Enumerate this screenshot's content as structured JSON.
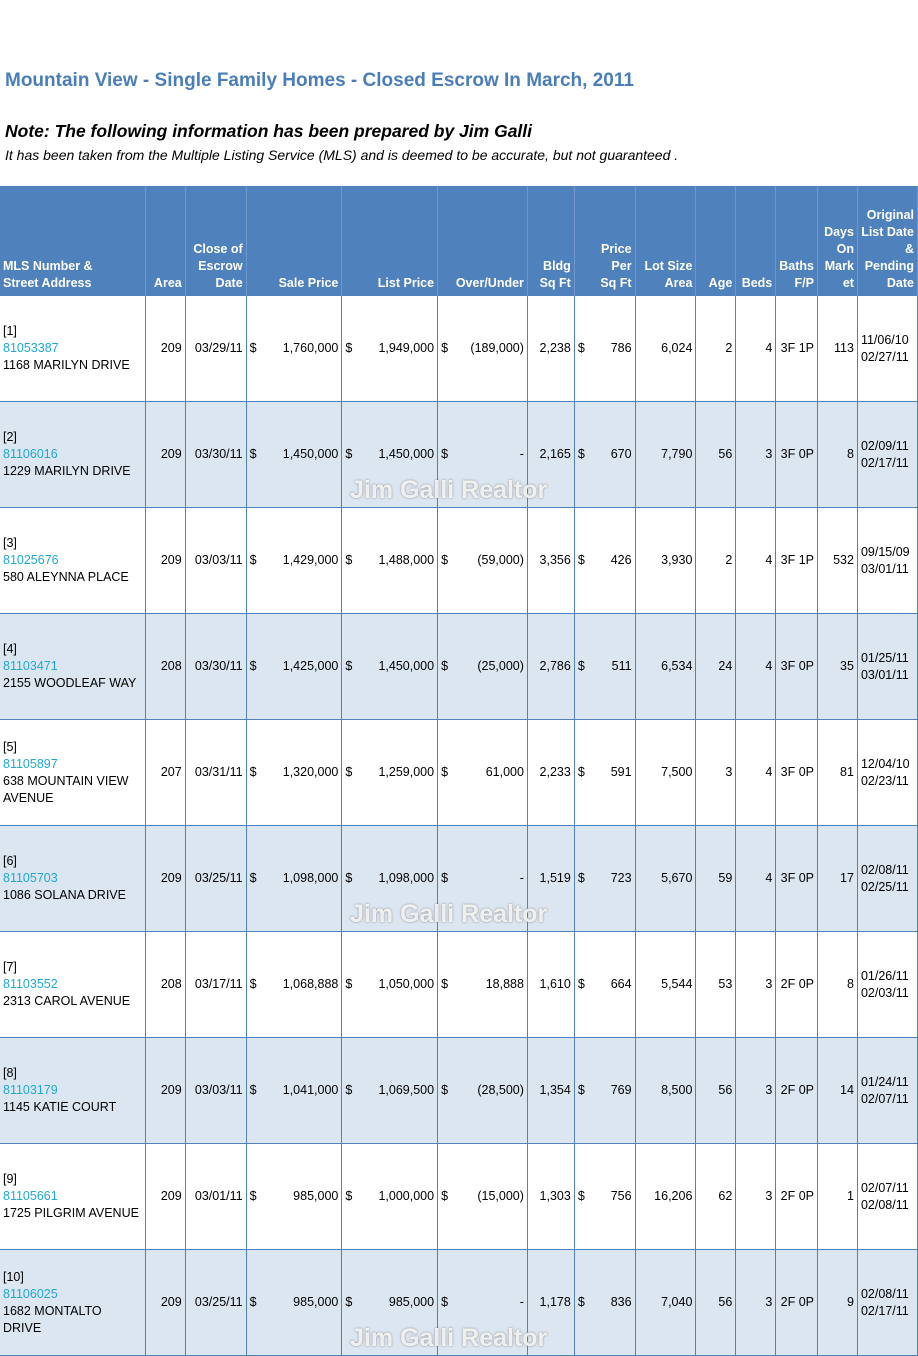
{
  "title": "Mountain View - Single Family Homes - Closed Escrow In March, 2011",
  "note": "Note:  The following information has been prepared by Jim Galli",
  "disclaimer": "It has been taken from the Multiple Listing Service (MLS) and is deemed to be accurate, but not guaranteed .",
  "watermark": "Jim Galli Realtor",
  "colors": {
    "title": "#4a7ebb",
    "header_bg": "#4f81bd",
    "row_alt": "#dce6f1",
    "mls_link": "#1fa9d6"
  },
  "currency_symbol": "$",
  "headers": {
    "mls": [
      "MLS Number &",
      "Street Address"
    ],
    "area": [
      "Area"
    ],
    "close": [
      "Close of",
      "Escrow",
      "Date"
    ],
    "sale": [
      "Sale Price"
    ],
    "list": [
      "List Price"
    ],
    "over": [
      "Over/Under"
    ],
    "bldg": [
      "Bldg",
      "Sq Ft"
    ],
    "ppsf": [
      "Price",
      "Per",
      "Sq Ft"
    ],
    "lot": [
      "Lot Size",
      "Area"
    ],
    "age": [
      "Age"
    ],
    "beds": [
      "Beds"
    ],
    "baths": [
      "Baths",
      "F/P"
    ],
    "dom": [
      "Days",
      "On",
      "Mark",
      "et"
    ],
    "orig": [
      "Original",
      "List Date",
      "&",
      "Pending",
      "Date"
    ]
  },
  "rows": [
    {
      "idx": "[1]",
      "mls": "81053387",
      "address": "1168 MARILYN DRIVE",
      "area": "209",
      "close": "03/29/11",
      "sale": "1,760,000",
      "list": "1,949,000",
      "over": "(189,000)",
      "bldg": "2,238",
      "ppsf": "786",
      "lot": "6,024",
      "age": "2",
      "beds": "4",
      "baths": "3F 1P",
      "dom": "113",
      "list_date": "11/06/10",
      "pending_date": "02/27/11"
    },
    {
      "idx": "[2]",
      "mls": "81106016",
      "address": "1229 MARILYN DRIVE",
      "area": "209",
      "close": "03/30/11",
      "sale": "1,450,000",
      "list": "1,450,000",
      "over": "-",
      "bldg": "2,165",
      "ppsf": "670",
      "lot": "7,790",
      "age": "56",
      "beds": "3",
      "baths": "3F 0P",
      "dom": "8",
      "list_date": "02/09/11",
      "pending_date": "02/17/11"
    },
    {
      "idx": "[3]",
      "mls": "81025676",
      "address": "580 ALEYNNA PLACE",
      "area": "209",
      "close": "03/03/11",
      "sale": "1,429,000",
      "list": "1,488,000",
      "over": "(59,000)",
      "bldg": "3,356",
      "ppsf": "426",
      "lot": "3,930",
      "age": "2",
      "beds": "4",
      "baths": "3F 1P",
      "dom": "532",
      "list_date": "09/15/09",
      "pending_date": "03/01/11"
    },
    {
      "idx": "[4]",
      "mls": "81103471",
      "address": "2155 WOODLEAF WAY",
      "area": "208",
      "close": "03/30/11",
      "sale": "1,425,000",
      "list": "1,450,000",
      "over": "(25,000)",
      "bldg": "2,786",
      "ppsf": "511",
      "lot": "6,534",
      "age": "24",
      "beds": "4",
      "baths": "3F 0P",
      "dom": "35",
      "list_date": "01/25/11",
      "pending_date": "03/01/11"
    },
    {
      "idx": "[5]",
      "mls": "81105897",
      "address": "638 MOUNTAIN VIEW AVENUE",
      "area": "207",
      "close": "03/31/11",
      "sale": "1,320,000",
      "list": "1,259,000",
      "over": "61,000",
      "bldg": "2,233",
      "ppsf": "591",
      "lot": "7,500",
      "age": "3",
      "beds": "4",
      "baths": "3F 0P",
      "dom": "81",
      "list_date": "12/04/10",
      "pending_date": "02/23/11"
    },
    {
      "idx": "[6]",
      "mls": "81105703",
      "address": "1086 SOLANA DRIVE",
      "area": "209",
      "close": "03/25/11",
      "sale": "1,098,000",
      "list": "1,098,000",
      "over": "-",
      "bldg": "1,519",
      "ppsf": "723",
      "lot": "5,670",
      "age": "59",
      "beds": "4",
      "baths": "3F 0P",
      "dom": "17",
      "list_date": "02/08/11",
      "pending_date": "02/25/11"
    },
    {
      "idx": "[7]",
      "mls": "81103552",
      "address": "2313 CAROL AVENUE",
      "area": "208",
      "close": "03/17/11",
      "sale": "1,068,888",
      "list": "1,050,000",
      "over": "18,888",
      "bldg": "1,610",
      "ppsf": "664",
      "lot": "5,544",
      "age": "53",
      "beds": "3",
      "baths": "2F 0P",
      "dom": "8",
      "list_date": "01/26/11",
      "pending_date": "02/03/11"
    },
    {
      "idx": "[8]",
      "mls": "81103179",
      "address": "1145 KATIE COURT",
      "area": "209",
      "close": "03/03/11",
      "sale": "1,041,000",
      "list": "1,069,500",
      "over": "(28,500)",
      "bldg": "1,354",
      "ppsf": "769",
      "lot": "8,500",
      "age": "56",
      "beds": "3",
      "baths": "2F 0P",
      "dom": "14",
      "list_date": "01/24/11",
      "pending_date": "02/07/11"
    },
    {
      "idx": "[9]",
      "mls": "81105661",
      "address": "1725 PILGRIM AVENUE",
      "area": "209",
      "close": "03/01/11",
      "sale": "985,000",
      "list": "1,000,000",
      "over": "(15,000)",
      "bldg": "1,303",
      "ppsf": "756",
      "lot": "16,206",
      "age": "62",
      "beds": "3",
      "baths": "2F 0P",
      "dom": "1",
      "list_date": "02/07/11",
      "pending_date": "02/08/11"
    },
    {
      "idx": "[10]",
      "mls": "81106025",
      "address": "1682 MONTALTO DRIVE",
      "area": "209",
      "close": "03/25/11",
      "sale": "985,000",
      "list": "985,000",
      "over": "-",
      "bldg": "1,178",
      "ppsf": "836",
      "lot": "7,040",
      "age": "56",
      "beds": "3",
      "baths": "2F 0P",
      "dom": "9",
      "list_date": "02/08/11",
      "pending_date": "02/17/11"
    }
  ]
}
